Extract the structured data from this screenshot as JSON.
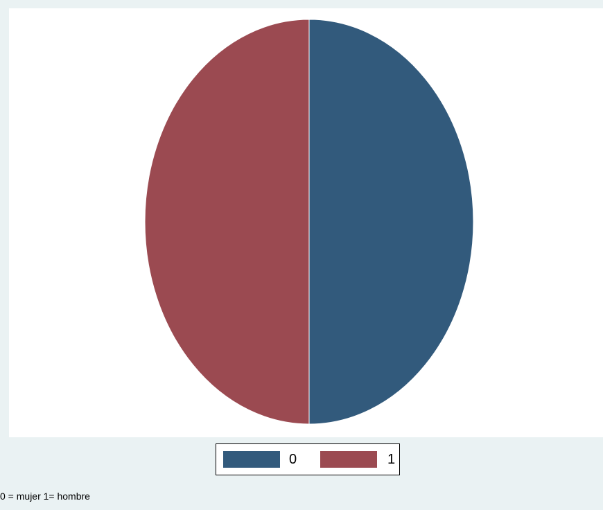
{
  "chart_data": {
    "type": "pie",
    "title": "",
    "slices": [
      {
        "label": "0",
        "value": 50,
        "color": "#325a7c"
      },
      {
        "label": "1",
        "value": 50,
        "color": "#9b4a51"
      }
    ],
    "legend": {
      "position": "bottom-center",
      "entries": [
        {
          "label": "0",
          "color": "#325a7c"
        },
        {
          "label": "1",
          "color": "#9b4a51"
        }
      ]
    },
    "note": "0 = mujer 1= hombre"
  },
  "colors": {
    "background": "#eaf2f3",
    "plot_background": "#ffffff",
    "slice_outline": "#ffffff"
  }
}
